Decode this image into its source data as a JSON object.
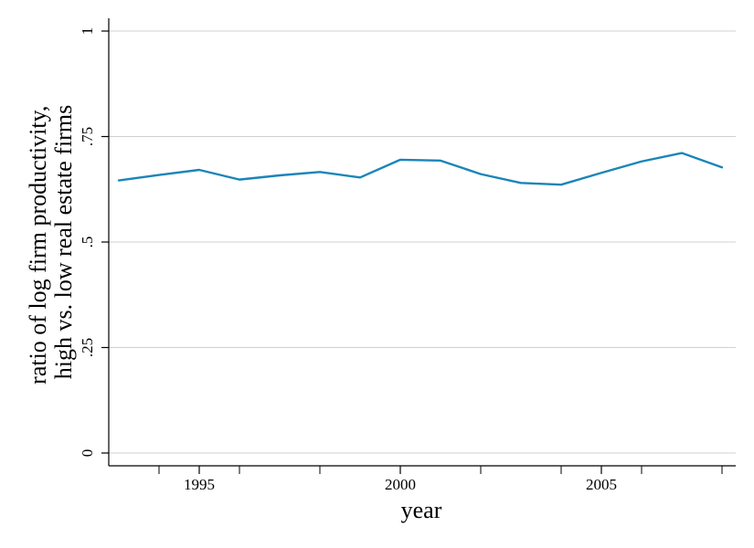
{
  "chart_data": {
    "type": "line",
    "title": "",
    "xlabel": "year",
    "ylabel_lines": [
      "ratio of log firm productivity,",
      "high vs. low real estate firms"
    ],
    "xlim": [
      1993,
      2008
    ],
    "ylim": [
      0,
      1
    ],
    "x_ticks": [
      1995,
      2000,
      2005
    ],
    "x_tick_labels": [
      "1995",
      "2000",
      "2005"
    ],
    "x_minor_ticks": [
      1994,
      1996,
      1998,
      2002,
      2004,
      2006,
      2008
    ],
    "y_ticks": [
      0,
      0.25,
      0.5,
      0.75,
      1
    ],
    "y_tick_labels": [
      "0",
      ".25",
      ".5",
      ".75",
      "1"
    ],
    "grid": true,
    "series": [
      {
        "name": "ratio",
        "color": "#1a85b8",
        "x": [
          1993,
          1994,
          1995,
          1996,
          1997,
          1998,
          1999,
          2000,
          2001,
          2002,
          2003,
          2004,
          2005,
          2006,
          2007,
          2008
        ],
        "values": [
          0.646,
          0.659,
          0.671,
          0.648,
          0.658,
          0.666,
          0.653,
          0.695,
          0.693,
          0.661,
          0.64,
          0.636,
          0.664,
          0.691,
          0.711,
          0.677
        ]
      }
    ],
    "colors": {
      "grid": "#d0d0d0",
      "axis": "#000000",
      "line": "#1a85b8"
    }
  }
}
